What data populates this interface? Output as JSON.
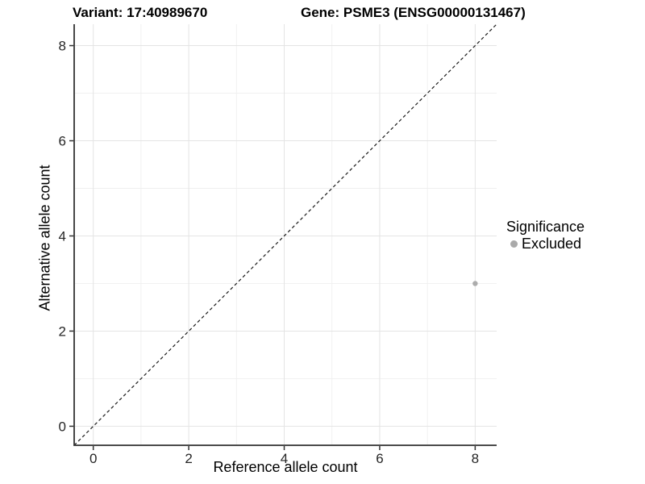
{
  "titles": {
    "left": "Variant: 17:40989670",
    "right": "Gene: PSME3 (ENSG00000131467)"
  },
  "chart_data": {
    "type": "scatter",
    "xlabel": "Reference allele count",
    "ylabel": "Alternative allele count",
    "xlim": [
      -0.4,
      8.45
    ],
    "ylim": [
      -0.4,
      8.45
    ],
    "xticks": [
      0,
      2,
      4,
      6,
      8
    ],
    "yticks": [
      0,
      2,
      4,
      6,
      8
    ],
    "xminor": [
      1,
      3,
      5,
      7
    ],
    "yminor": [
      1,
      3,
      5,
      7
    ],
    "grid": true,
    "points": [
      {
        "x": 8,
        "y": 3,
        "series": "Excluded"
      }
    ],
    "identity_line": {
      "style": "dashed",
      "from": -0.4,
      "to": 8.45,
      "color": "#1a1a1a"
    },
    "legend": {
      "title": "Significance",
      "position": "right",
      "items": [
        {
          "label": "Excluded",
          "color": "#aaaaaa"
        }
      ]
    },
    "colors": {
      "point": "#acacac",
      "grid_major": "#e4e4e4",
      "grid_minor": "#efefef",
      "axis": "#333333",
      "tick_text": "#262626"
    }
  }
}
